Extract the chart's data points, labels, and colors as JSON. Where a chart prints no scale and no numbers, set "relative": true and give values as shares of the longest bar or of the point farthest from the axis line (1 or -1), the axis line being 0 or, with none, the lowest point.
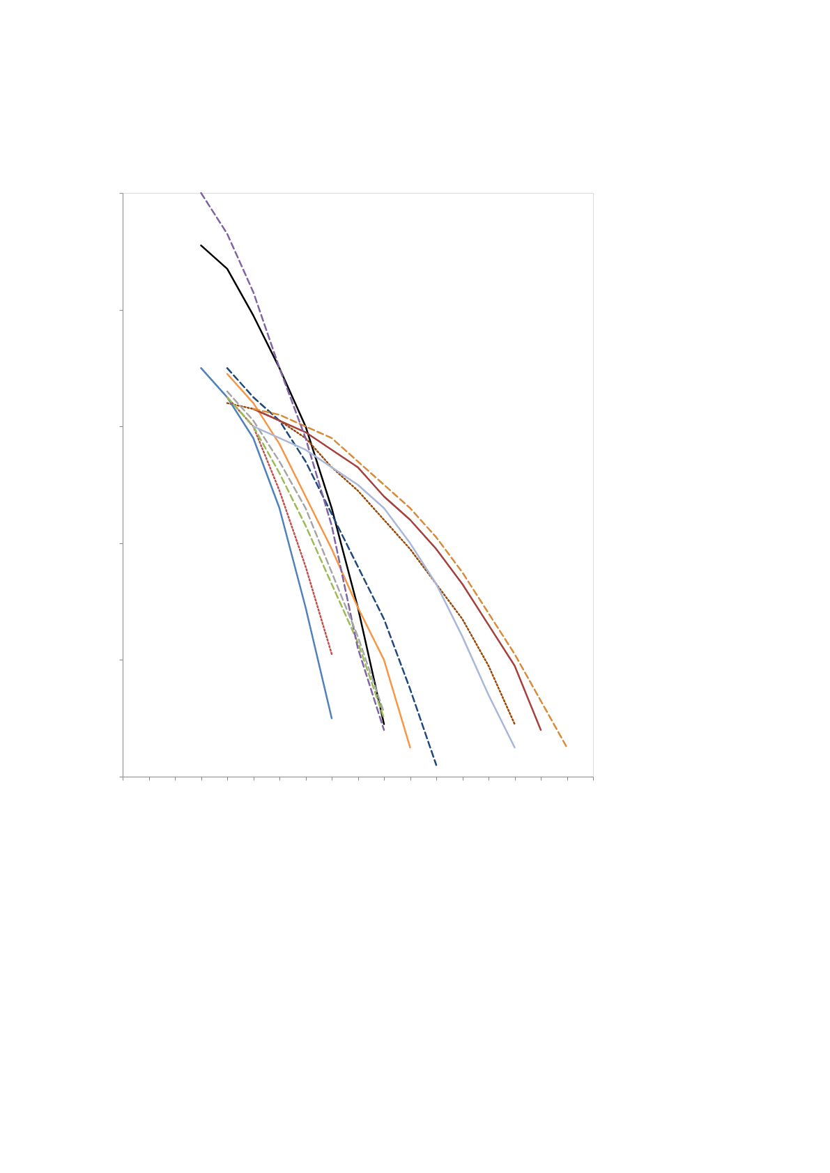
{
  "chart_data": {
    "type": "line",
    "relative": true,
    "tick_labels": false,
    "marker": "none",
    "categories": [
      null,
      null,
      null,
      null,
      null,
      null,
      null,
      null,
      null,
      null,
      null,
      null,
      null,
      null,
      null,
      null,
      null,
      null,
      null
    ],
    "series": [
      {
        "color": "#000000",
        "line_style": "solid",
        "values": [
          null,
          null,
          null,
          0.91,
          0.87,
          0.79,
          0.7,
          0.6,
          0.46,
          0.29,
          0.09,
          null,
          null,
          null,
          null,
          null,
          null,
          null,
          null
        ]
      },
      {
        "color": "#f79646",
        "line_style": "solid",
        "values": [
          null,
          null,
          null,
          null,
          0.69,
          0.64,
          0.57,
          0.48,
          0.39,
          0.29,
          0.2,
          0.05,
          null,
          null,
          null,
          null,
          null,
          null,
          null
        ]
      },
      {
        "color": "#1f497d",
        "line_style": "dashed",
        "values": [
          null,
          null,
          null,
          null,
          0.7,
          0.65,
          0.61,
          0.54,
          0.45,
          0.36,
          0.27,
          0.15,
          0.02,
          null,
          null,
          null,
          null,
          null,
          null
        ]
      },
      {
        "color": "#984807",
        "line_style": "dotted",
        "values": [
          null,
          null,
          null,
          null,
          0.64,
          0.63,
          0.61,
          0.58,
          0.53,
          0.49,
          0.44,
          0.39,
          0.33,
          0.27,
          0.19,
          0.09,
          null,
          null,
          null
        ]
      },
      {
        "color": "#a5403c",
        "line_style": "solid",
        "values": [
          null,
          null,
          null,
          null,
          null,
          0.63,
          0.61,
          0.59,
          0.56,
          0.53,
          0.48,
          0.44,
          0.39,
          0.33,
          0.26,
          0.19,
          0.08,
          null,
          null
        ]
      },
      {
        "color": "#d98b3a",
        "line_style": "dashed",
        "values": [
          null,
          null,
          null,
          null,
          null,
          0.63,
          0.62,
          0.6,
          0.58,
          0.54,
          0.5,
          0.46,
          0.41,
          0.35,
          0.28,
          0.21,
          0.13,
          0.05,
          null
        ]
      },
      {
        "color": "#4f81bd",
        "line_style": "solid",
        "values": [
          null,
          null,
          null,
          0.7,
          0.65,
          0.58,
          0.46,
          0.29,
          0.1,
          null,
          null,
          null,
          null,
          null,
          null,
          null,
          null,
          null,
          null
        ]
      },
      {
        "color": "#c0504d",
        "line_style": "dotted",
        "values": [
          null,
          null,
          null,
          null,
          0.65,
          0.6,
          0.49,
          0.36,
          0.21,
          null,
          null,
          null,
          null,
          null,
          null,
          null,
          null,
          null,
          null
        ]
      },
      {
        "color": "#9bbb59",
        "line_style": "dashed",
        "values": [
          null,
          null,
          null,
          null,
          0.65,
          0.6,
          0.52,
          0.43,
          0.33,
          0.23,
          0.1,
          null,
          null,
          null,
          null,
          null,
          null,
          null,
          null
        ]
      },
      {
        "color": "#8064a2",
        "line_style": "dashed",
        "values": [
          null,
          null,
          null,
          1.0,
          0.93,
          0.83,
          0.7,
          0.58,
          0.43,
          0.22,
          0.08,
          null,
          null,
          null,
          null,
          null,
          null,
          null,
          null
        ]
      },
      {
        "color": "#a6a6a6",
        "line_style": "dashed",
        "values": [
          null,
          null,
          null,
          null,
          0.66,
          0.61,
          0.54,
          0.46,
          0.35,
          0.24,
          0.11,
          null,
          null,
          null,
          null,
          null,
          null,
          null,
          null
        ]
      },
      {
        "color": "#a9b8d9",
        "line_style": "solid",
        "values": [
          null,
          null,
          null,
          null,
          null,
          0.6,
          0.58,
          0.56,
          0.53,
          0.5,
          0.46,
          0.4,
          0.33,
          0.24,
          0.14,
          0.05,
          null,
          null,
          null
        ]
      }
    ]
  }
}
